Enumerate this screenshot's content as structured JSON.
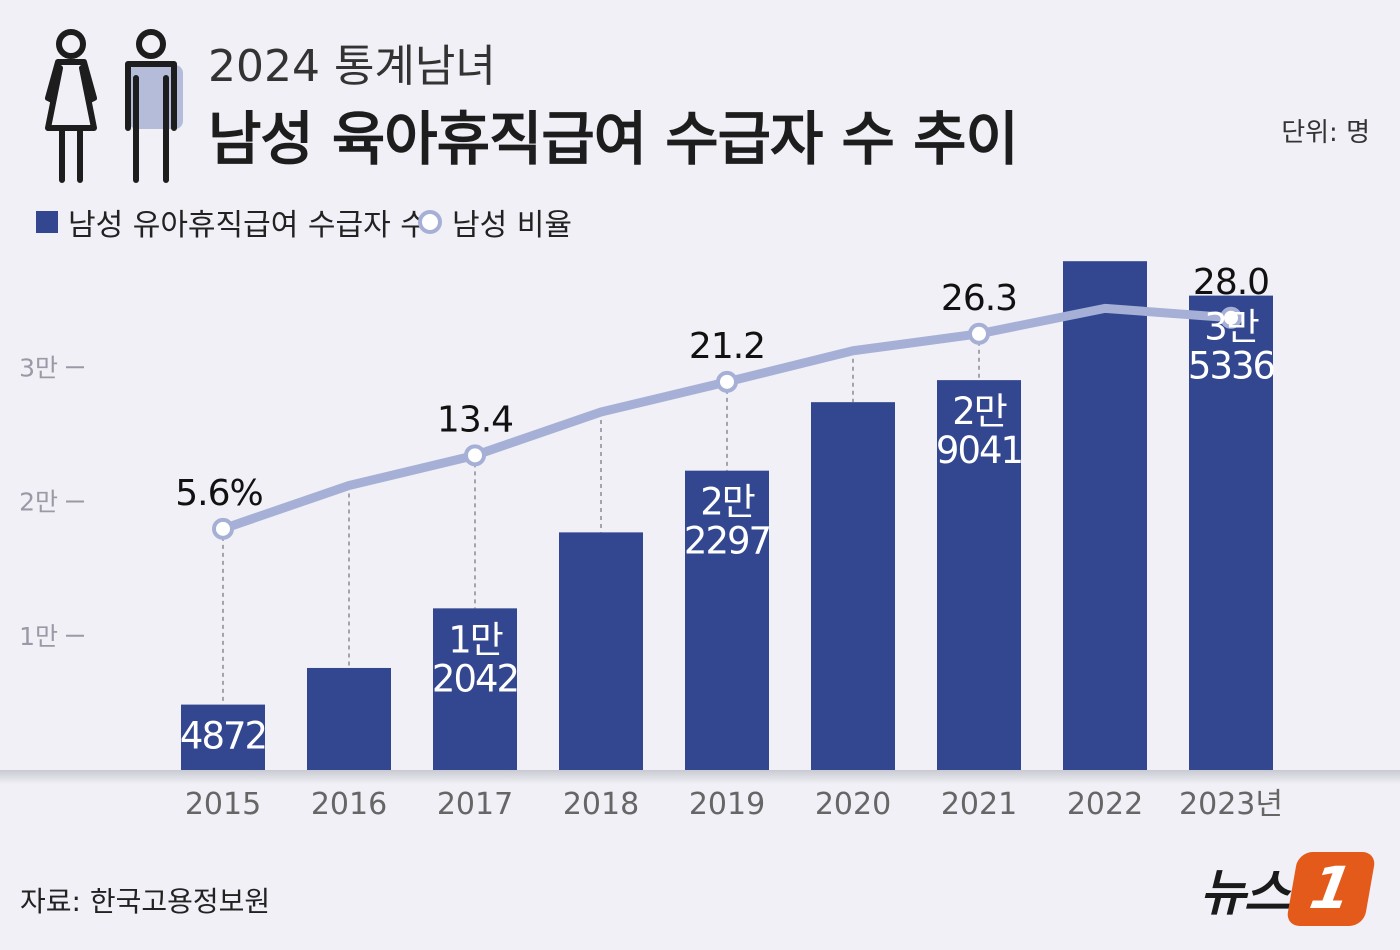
{
  "header": {
    "subtitle": "2024 통계남녀",
    "title": "남성 육아휴직급여 수급자 수 추이",
    "unit": "단위: 명"
  },
  "legend": {
    "bar_label": "남성 유아휴직급여 수급자 수",
    "line_label": "남성 비율"
  },
  "source": "자료: 한국고용정보원",
  "logo": {
    "text": "뉴스",
    "mark": "1"
  },
  "colors": {
    "bar": "#334790",
    "line": "#a6b0d6",
    "background": "#f0f0f6",
    "logo_accent": "#e45a1a"
  },
  "chart_data": {
    "type": "bar",
    "categories": [
      "2015",
      "2016",
      "2017",
      "2018",
      "2019",
      "2020",
      "2021",
      "2022",
      "2023년"
    ],
    "y_ticks": [
      "1만",
      "2만",
      "3만"
    ],
    "ylim": [
      0,
      40000
    ],
    "series": [
      {
        "name": "남성 유아휴직급여 수급자 수",
        "type": "bar",
        "values": [
          4872,
          7600,
          12042,
          17700,
          22297,
          27400,
          29041,
          37900,
          35336
        ],
        "labels": [
          [
            "4872"
          ],
          null,
          [
            "1만",
            "2042"
          ],
          null,
          [
            "2만",
            "2297"
          ],
          null,
          [
            "2만",
            "9041"
          ],
          null,
          [
            "3만",
            "5336"
          ]
        ]
      },
      {
        "name": "남성 비율",
        "type": "line",
        "values": [
          5.6,
          10.2,
          13.4,
          18.0,
          21.2,
          24.5,
          26.3,
          29.0,
          28.0
        ],
        "labels": [
          "5.6%",
          null,
          "13.4",
          null,
          "21.2",
          null,
          "26.3",
          null,
          "28.0"
        ],
        "markers": [
          true,
          false,
          true,
          false,
          true,
          false,
          true,
          false,
          true
        ]
      }
    ],
    "line_ylim": [
      -20,
      37
    ]
  }
}
